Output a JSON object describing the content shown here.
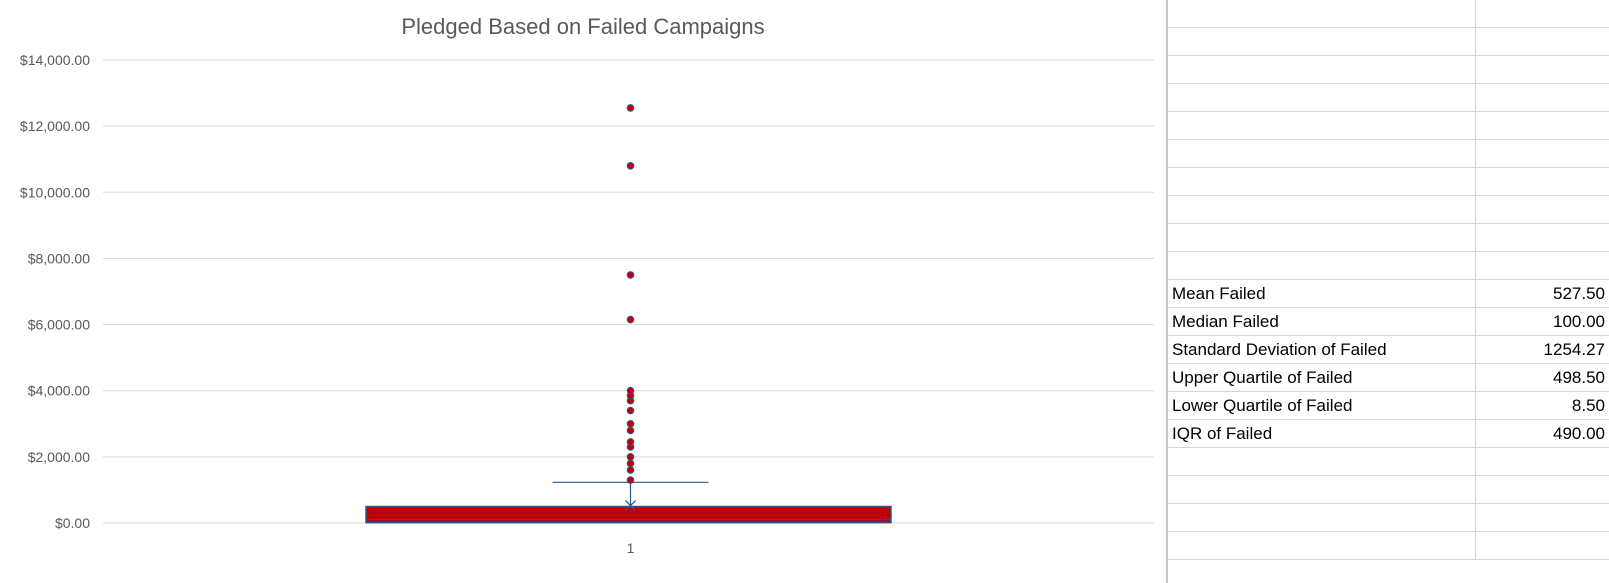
{
  "chart_data": {
    "type": "box",
    "title": "Pledged Based on Failed Campaigns",
    "xlabel": "",
    "ylabel": "",
    "categories": [
      "1"
    ],
    "ylim": [
      0,
      14000
    ],
    "ytick_labels": [
      "$0.00",
      "$2,000.00",
      "$4,000.00",
      "$6,000.00",
      "$8,000.00",
      "$10,000.00",
      "$12,000.00",
      "$14,000.00"
    ],
    "ytick_values": [
      0,
      2000,
      4000,
      6000,
      8000,
      10000,
      12000,
      14000
    ],
    "grid": true,
    "legend": "none",
    "box": {
      "q1": 8.5,
      "median": 100,
      "q3": 498.5,
      "mean": 527.5,
      "whisker_low": 0,
      "whisker_high": 1230
    },
    "outliers": [
      1300,
      1600,
      1800,
      2000,
      2300,
      2450,
      2800,
      3000,
      3400,
      3700,
      3850,
      4000,
      6150,
      7500,
      10800,
      12550
    ],
    "colors": {
      "box_fill": "#c00000",
      "box_border": "#2f5597",
      "whisker": "#2f5597",
      "outlier_fill": "#c00000",
      "outlier_border": "#2f5597",
      "grid": "#d9d9d9"
    }
  },
  "sheet": {
    "rows": [
      {
        "label": "",
        "value": ""
      },
      {
        "label": "",
        "value": ""
      },
      {
        "label": "",
        "value": ""
      },
      {
        "label": "",
        "value": ""
      },
      {
        "label": "",
        "value": ""
      },
      {
        "label": "",
        "value": ""
      },
      {
        "label": "",
        "value": ""
      },
      {
        "label": "",
        "value": ""
      },
      {
        "label": "",
        "value": ""
      },
      {
        "label": "",
        "value": ""
      },
      {
        "label": "Mean Failed",
        "value": "527.50"
      },
      {
        "label": "Median Failed",
        "value": "100.00"
      },
      {
        "label": "Standard Deviation of Failed",
        "value": "1254.27"
      },
      {
        "label": "Upper Quartile of Failed",
        "value": "498.50"
      },
      {
        "label": "Lower Quartile of Failed",
        "value": "8.50"
      },
      {
        "label": "IQR of Failed",
        "value": "490.00"
      },
      {
        "label": "",
        "value": ""
      },
      {
        "label": "",
        "value": ""
      },
      {
        "label": "",
        "value": ""
      },
      {
        "label": "",
        "value": ""
      }
    ]
  }
}
